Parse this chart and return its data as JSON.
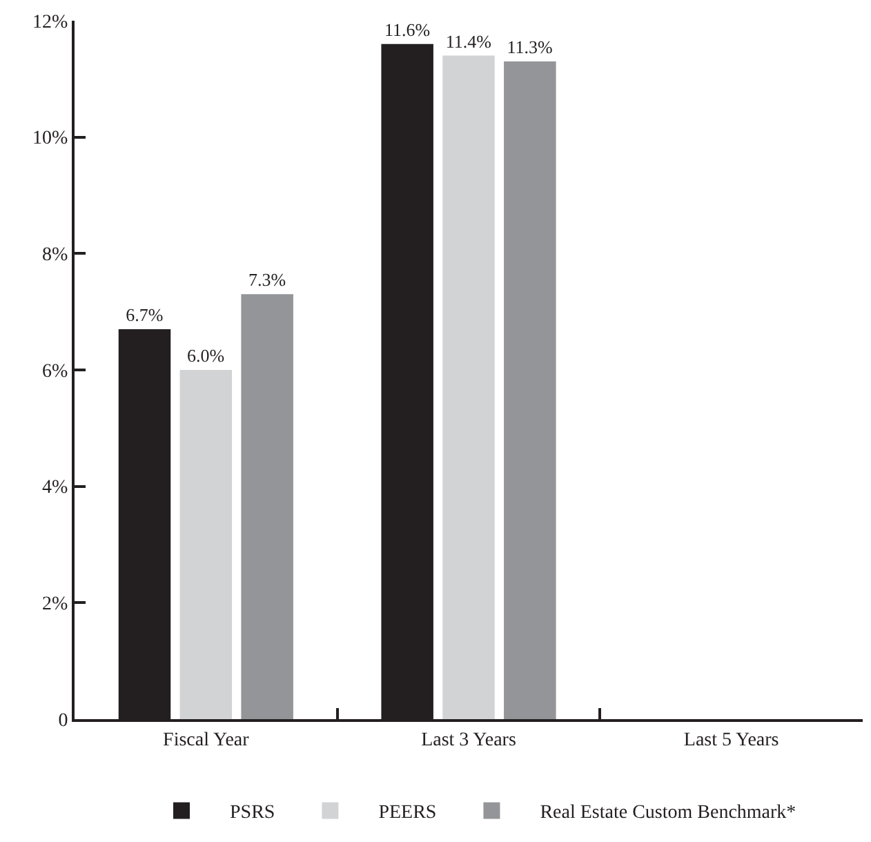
{
  "chart_data": {
    "type": "bar",
    "categories": [
      "Fiscal Year",
      "Last 3 Years",
      "Last 5 Years"
    ],
    "series": [
      {
        "name": "PSRS",
        "color": "#231f20",
        "values": [
          6.7,
          11.6,
          null
        ],
        "value_labels": [
          "6.7%",
          "11.6%",
          null
        ]
      },
      {
        "name": "PEERS",
        "color": "#d1d3d4",
        "values": [
          6.0,
          11.4,
          null
        ],
        "value_labels": [
          "6.0%",
          "11.4%",
          null
        ]
      },
      {
        "name": "Real Estate Custom Benchmark*",
        "color": "#939598",
        "values": [
          7.3,
          11.3,
          null
        ],
        "value_labels": [
          "7.3%",
          "11.3%",
          null
        ]
      }
    ],
    "ylim": [
      0,
      12
    ],
    "yticks": [
      0,
      {
        "value": 2,
        "label": "2%"
      },
      {
        "value": 4,
        "label": "4%"
      },
      {
        "value": 6,
        "label": "6%"
      },
      {
        "value": 8,
        "label": "8%"
      },
      {
        "value": 10,
        "label": "10%"
      },
      {
        "value": 12,
        "label": "12%"
      }
    ],
    "grid": false,
    "legend": "bottom"
  }
}
